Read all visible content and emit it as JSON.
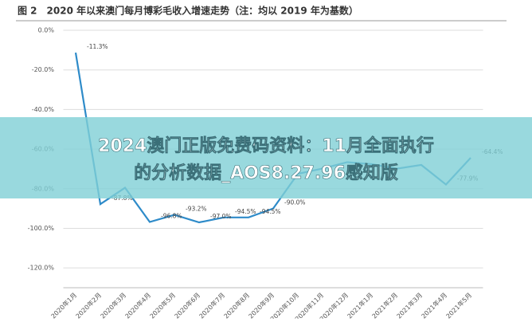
{
  "chart_data": {
    "type": "line",
    "title": "图 2　2020 年以来澳门每月博彩毛收入增速走势（注：均以 2019 年为基数）",
    "categories": [
      "2020年1月",
      "2020年2月",
      "2020年3月",
      "2020年4月",
      "2020年5月",
      "2020年6月",
      "2020年7月",
      "2020年8月",
      "2020年9月",
      "2020年10月",
      "2020年11月",
      "2020年12月",
      "2021年1月",
      "2021年2月",
      "2021年3月",
      "2021年4月",
      "2021年5月"
    ],
    "values": [
      -11.3,
      -87.8,
      -79.5,
      -96.8,
      -93.2,
      -97.0,
      -94.5,
      -94.5,
      -90.0,
      -72.5,
      -69.8,
      -66.6,
      -67.6,
      -69.9,
      -68.0,
      -77.9,
      -64.4
    ],
    "value_labels": [
      "-11.3%",
      "-87.8%",
      null,
      "-96.8%",
      "-93.2%",
      "-97.0%",
      "-94.5%",
      "-94.5%",
      "-90.0%",
      null,
      null,
      null,
      null,
      null,
      null,
      "-77.9%",
      "-64.4%"
    ],
    "color": "#2e8bc9",
    "ylim": [
      -130,
      0
    ],
    "yticks": [
      {
        "value": 0,
        "label": "0.0%"
      },
      {
        "value": -20,
        "label": "-20.0%"
      },
      {
        "value": -40,
        "label": "-40.0%"
      },
      {
        "value": -60,
        "label": "-60.0%"
      },
      {
        "value": -80,
        "label": "-80.0%"
      },
      {
        "value": -100,
        "label": "-100.0%"
      },
      {
        "value": -120,
        "label": "-120.0%"
      }
    ],
    "grid": true
  },
  "banner": "2024澳门正版免费码资料：11月全面执行的分析数据_AOS8.27.96感知版"
}
